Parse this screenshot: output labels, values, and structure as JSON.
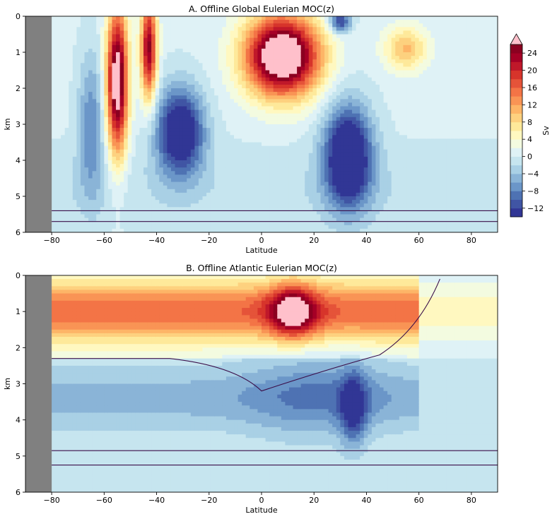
{
  "chart_data": [
    {
      "type": "heatmap",
      "title": "A. Offline Global Eulerian MOC(z)",
      "xlabel": "Latitude",
      "ylabel": "km",
      "xlim": [
        -90,
        90
      ],
      "ylim": [
        6,
        0
      ],
      "xticks": [
        -80,
        -60,
        -40,
        -20,
        0,
        20,
        40,
        60,
        80
      ],
      "yticks": [
        0,
        1,
        2,
        3,
        4,
        5,
        6
      ],
      "masked_latitude_below": -80,
      "features": [
        {
          "kind": "cell",
          "lat": -55,
          "depth_km": 1.8,
          "value_sv": 26
        },
        {
          "kind": "cell",
          "lat": -43,
          "depth_km": 0.8,
          "value_sv": 20
        },
        {
          "kind": "cell",
          "lat": 8,
          "depth_km": 1.2,
          "value_sv": 26
        },
        {
          "kind": "cell",
          "lat": -30,
          "depth_km": 3.2,
          "value_sv": -14
        },
        {
          "kind": "cell",
          "lat": 33,
          "depth_km": 3.9,
          "value_sv": -14
        },
        {
          "kind": "cell",
          "lat": 55,
          "depth_km": 0.9,
          "value_sv": 9
        },
        {
          "kind": "cell",
          "lat": 30,
          "depth_km": 0.2,
          "value_sv": -13
        }
      ]
    },
    {
      "type": "heatmap",
      "title": "B. Offline Atlantic Eulerian MOC(z)",
      "xlabel": "Latitude",
      "ylabel": "km",
      "xlim": [
        -90,
        90
      ],
      "ylim": [
        6,
        0
      ],
      "xticks": [
        -80,
        -60,
        -40,
        -20,
        0,
        20,
        40,
        60,
        80
      ],
      "yticks": [
        0,
        1,
        2,
        3,
        4,
        5,
        6
      ],
      "masked_latitude_below": -80,
      "features": [
        {
          "kind": "cell",
          "lat": 12,
          "depth_km": 1.0,
          "value_sv": 22
        },
        {
          "kind": "cell",
          "lat": 35,
          "depth_km": 3.7,
          "value_sv": -12
        },
        {
          "kind": "cell",
          "lat": -40,
          "depth_km": 3.5,
          "value_sv": -7
        }
      ]
    }
  ],
  "colorbar": {
    "label": "Sv",
    "ticks": [
      24,
      20,
      16,
      12,
      8,
      4,
      0,
      -4,
      -8,
      -12
    ],
    "levels": [
      -14,
      -12,
      -10,
      -8,
      -6,
      -4,
      -2,
      0,
      2,
      4,
      6,
      8,
      10,
      12,
      14,
      16,
      18,
      20,
      22,
      24,
      26
    ],
    "colors": [
      "#313695",
      "#4055a4",
      "#4e72b3",
      "#6b96c8",
      "#8ab4d7",
      "#a9d0e5",
      "#c6e5ef",
      "#dff2f6",
      "#f3fbe0",
      "#fff8c0",
      "#fee99a",
      "#fdd17f",
      "#fdb567",
      "#f99455",
      "#f37446",
      "#e55339",
      "#d7342b",
      "#c0182a",
      "#a50026",
      "#8b0020"
    ],
    "extend_color": "#ffc0cb",
    "mask_color": "#808080",
    "contour_color": "#3b0f4a"
  }
}
